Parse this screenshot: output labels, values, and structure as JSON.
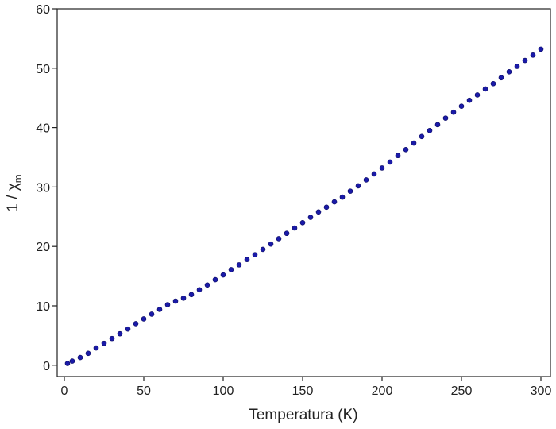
{
  "chart_data": {
    "type": "scatter",
    "xlabel": "Temperatura (K)",
    "ylabel": "1 / χ",
    "ylabel_sub": "m",
    "color": "#1a1aa8",
    "x": [
      2,
      5,
      10,
      15,
      20,
      25,
      30,
      35,
      40,
      45,
      50,
      55,
      60,
      65,
      70,
      75,
      80,
      85,
      90,
      95,
      100,
      105,
      110,
      115,
      120,
      125,
      130,
      135,
      140,
      145,
      150,
      155,
      160,
      165,
      170,
      175,
      180,
      185,
      190,
      195,
      200,
      205,
      210,
      215,
      220,
      225,
      230,
      235,
      240,
      245,
      250,
      255,
      260,
      265,
      270,
      275,
      280,
      285,
      290,
      295,
      300
    ],
    "values": [
      0.3,
      0.7,
      1.3,
      2.0,
      2.9,
      3.7,
      4.5,
      5.3,
      6.1,
      7.0,
      7.8,
      8.6,
      9.4,
      10.2,
      10.8,
      11.3,
      11.9,
      12.7,
      13.5,
      14.4,
      15.2,
      16.1,
      16.9,
      17.8,
      18.6,
      19.5,
      20.4,
      21.3,
      22.2,
      23.1,
      24.0,
      24.9,
      25.8,
      26.6,
      27.5,
      28.3,
      29.3,
      30.2,
      31.2,
      32.2,
      33.2,
      34.2,
      35.3,
      36.3,
      37.4,
      38.5,
      39.5,
      40.5,
      41.6,
      42.6,
      43.6,
      44.6,
      45.5,
      46.5,
      47.4,
      48.4,
      49.4,
      50.3,
      51.3,
      52.2,
      53.2
    ],
    "xlim": [
      -4.5,
      306
    ],
    "ylim": [
      -1.9,
      60
    ],
    "xticks": [
      0,
      50,
      100,
      150,
      200,
      250,
      300
    ],
    "yticks": [
      0,
      10,
      20,
      30,
      40,
      50,
      60
    ]
  }
}
